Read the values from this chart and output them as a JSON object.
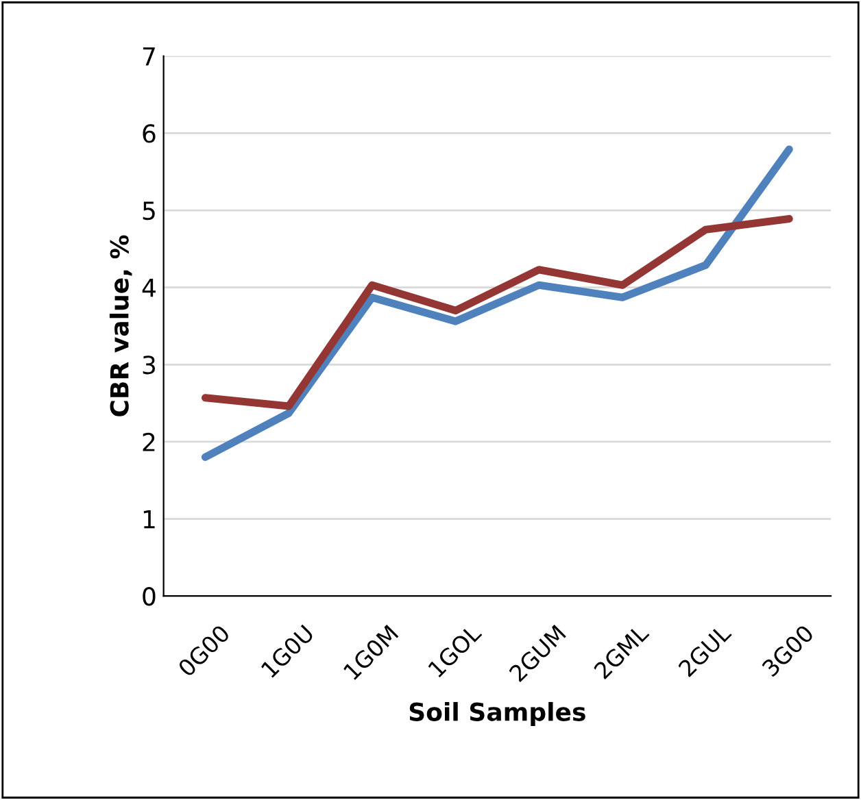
{
  "chart_data": {
    "type": "line",
    "xlabel": "Soil Samples",
    "ylabel": "CBR value, %",
    "categories": [
      "0G00",
      "1G0U",
      "1G0M",
      "1GOL",
      "2GUM",
      "2GML",
      "2GUL",
      "3G00"
    ],
    "series": [
      {
        "color": "#4f81bd",
        "values": [
          1.8,
          2.37,
          3.87,
          3.56,
          4.03,
          3.87,
          4.29,
          5.79
        ]
      },
      {
        "color": "#943634",
        "values": [
          2.57,
          2.46,
          4.03,
          3.7,
          4.23,
          4.03,
          4.75,
          4.89
        ]
      }
    ],
    "ylim": [
      0,
      7
    ],
    "yticks": [
      0,
      1,
      2,
      3,
      4,
      5,
      6,
      7
    ],
    "grid": "y",
    "marker": "none",
    "line_style": "solid"
  }
}
